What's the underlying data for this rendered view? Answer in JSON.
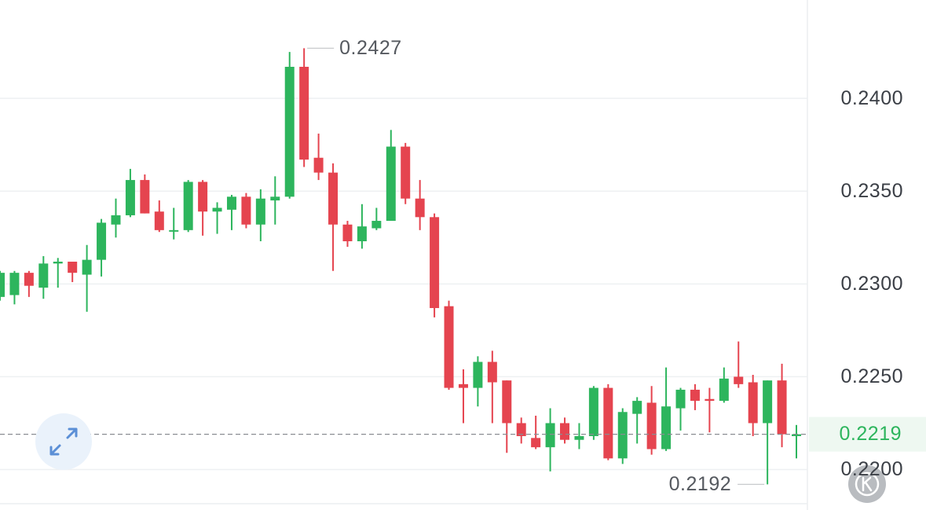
{
  "chart_data": {
    "type": "candlestick",
    "open": [
      0.2293,
      0.2294,
      0.2306,
      0.2298,
      0.2311,
      0.2312,
      0.2305,
      0.2313,
      0.2332,
      0.2337,
      0.2356,
      0.2339,
      0.2329,
      0.2329,
      0.2355,
      0.2339,
      0.234,
      0.2347,
      0.2332,
      0.2345,
      0.2347,
      0.2417,
      0.2368,
      0.236,
      0.2332,
      0.2323,
      0.233,
      0.2334,
      0.2374,
      0.2346,
      0.2336,
      0.2288,
      0.2246,
      0.2244,
      0.2258,
      0.2248,
      0.2225,
      0.2217,
      0.2212,
      0.2225,
      0.2216,
      0.2218,
      0.2244,
      0.2206,
      0.223,
      0.2236,
      0.2211,
      0.2233,
      0.2243,
      0.2238,
      0.2237,
      0.225,
      0.2247,
      0.2225,
      0.2248,
      0.2218
    ],
    "high": [
      0.2307,
      0.2307,
      0.2307,
      0.2315,
      0.2314,
      0.2312,
      0.2321,
      0.2335,
      0.2346,
      0.2362,
      0.2359,
      0.2345,
      0.2341,
      0.2356,
      0.2356,
      0.2344,
      0.2348,
      0.2349,
      0.2351,
      0.2358,
      0.2425,
      0.2427,
      0.2381,
      0.2365,
      0.2334,
      0.2343,
      0.2341,
      0.2383,
      0.2376,
      0.2356,
      0.2338,
      0.2291,
      0.2254,
      0.2261,
      0.2264,
      0.2248,
      0.2228,
      0.2229,
      0.2233,
      0.2228,
      0.2225,
      0.2245,
      0.2246,
      0.2233,
      0.2239,
      0.2245,
      0.2255,
      0.2244,
      0.2246,
      0.2244,
      0.2255,
      0.2269,
      0.2251,
      0.2248,
      0.2257,
      0.2224
    ],
    "low": [
      0.2291,
      0.2289,
      0.2293,
      0.2292,
      0.2298,
      0.2301,
      0.2285,
      0.2304,
      0.2325,
      0.2336,
      0.2338,
      0.2328,
      0.2324,
      0.2328,
      0.2326,
      0.2327,
      0.2329,
      0.233,
      0.2323,
      0.2332,
      0.2346,
      0.2363,
      0.2356,
      0.2307,
      0.232,
      0.2319,
      0.2329,
      0.2334,
      0.2343,
      0.2329,
      0.2282,
      0.2243,
      0.2225,
      0.2234,
      0.2225,
      0.2209,
      0.2214,
      0.2211,
      0.2199,
      0.2214,
      0.2211,
      0.2216,
      0.2205,
      0.2203,
      0.2214,
      0.2208,
      0.221,
      0.2221,
      0.2232,
      0.222,
      0.2236,
      0.2244,
      0.2218,
      0.2192,
      0.2212,
      0.2206
    ],
    "close": [
      0.2306,
      0.2306,
      0.2299,
      0.2311,
      0.2312,
      0.2306,
      0.2313,
      0.2333,
      0.2337,
      0.2356,
      0.2338,
      0.2329,
      0.2329,
      0.2355,
      0.2339,
      0.2341,
      0.2347,
      0.2332,
      0.2346,
      0.2347,
      0.2417,
      0.2367,
      0.236,
      0.2332,
      0.2323,
      0.2331,
      0.2334,
      0.2374,
      0.2346,
      0.2336,
      0.2287,
      0.2244,
      0.2244,
      0.2258,
      0.2247,
      0.2225,
      0.2218,
      0.2212,
      0.2225,
      0.2216,
      0.2218,
      0.2244,
      0.2206,
      0.2231,
      0.2237,
      0.2211,
      0.2234,
      0.2243,
      0.2237,
      0.2237,
      0.2249,
      0.2246,
      0.2225,
      0.2248,
      0.2219,
      0.2219
    ],
    "up_color": "#2db55d",
    "down_color": "#e5444f",
    "ylim": [
      0.2182,
      0.2453
    ],
    "yticks": [
      {
        "value": 0.24,
        "label": "0.2400"
      },
      {
        "value": 0.235,
        "label": "0.2350"
      },
      {
        "value": 0.23,
        "label": "0.2300"
      },
      {
        "value": 0.225,
        "label": "0.2250"
      },
      {
        "value": 0.22,
        "label": "0.2200"
      }
    ],
    "grid": true,
    "last_price": 0.2219,
    "max_label": 0.2427,
    "min_label": 0.2192
  }
}
